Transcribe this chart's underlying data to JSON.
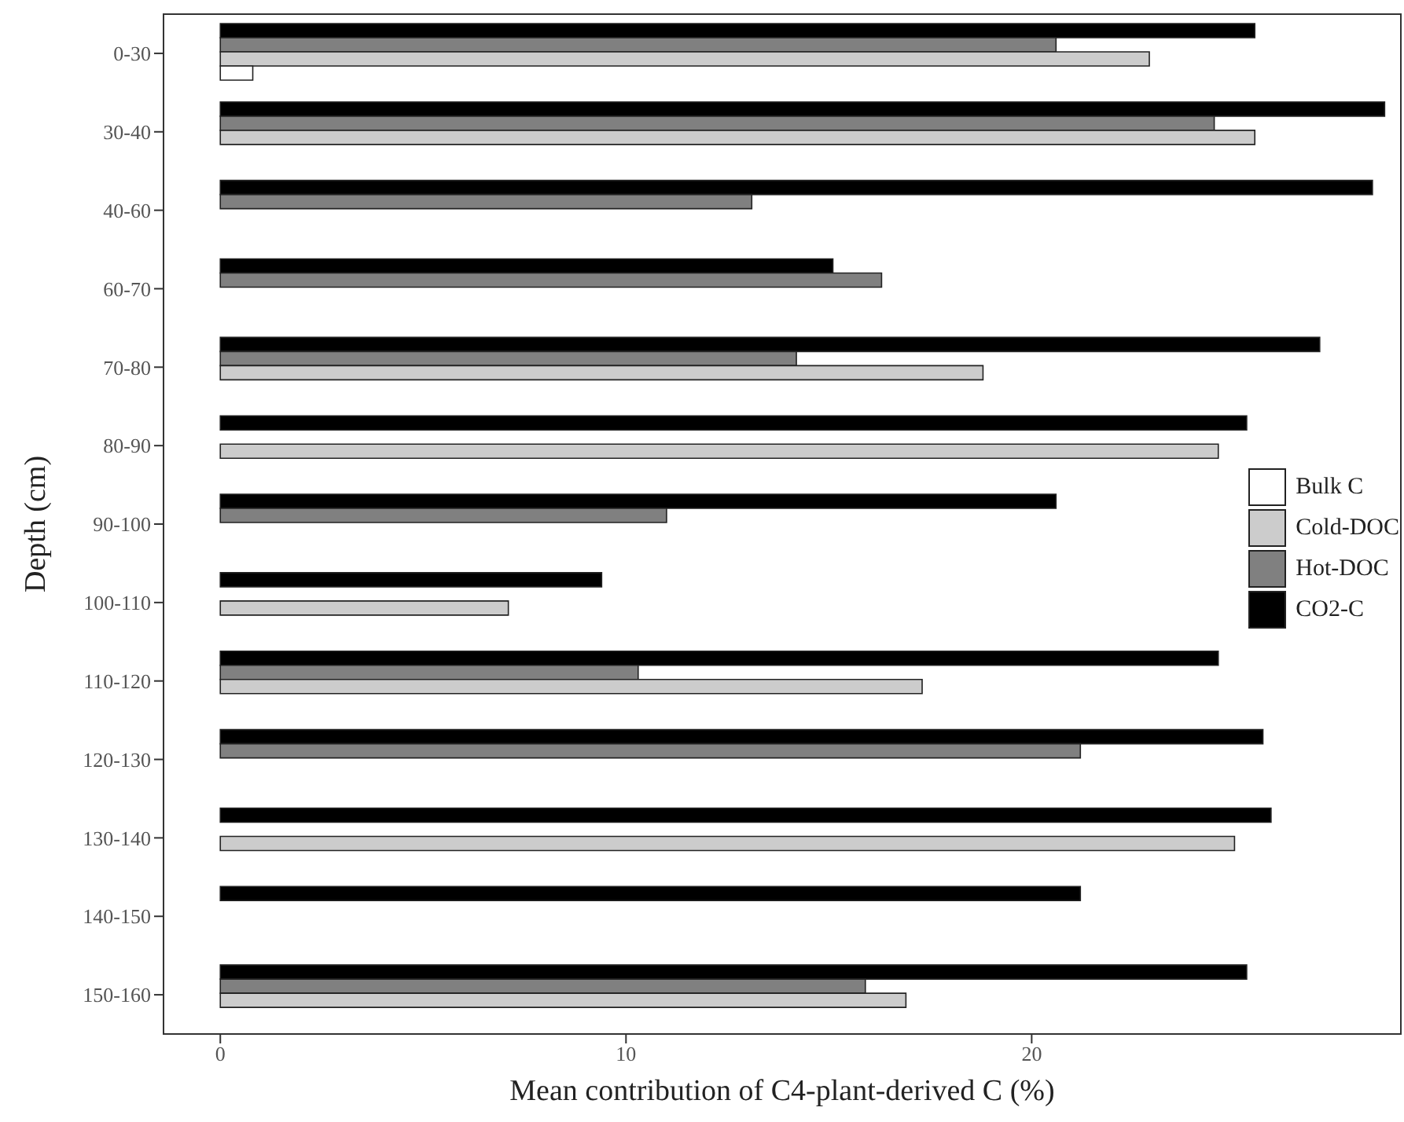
{
  "chart_data": {
    "type": "bar",
    "orientation": "horizontal",
    "xlabel": "Mean contribution of C4-plant-derived C (%)",
    "ylabel": "Depth (cm)",
    "categories": [
      "0-30",
      "30-40",
      "40-60",
      "60-70",
      "70-80",
      "80-90",
      "90-100",
      "100-110",
      "110-120",
      "120-130",
      "130-140",
      "140-150",
      "150-160"
    ],
    "series": [
      {
        "name": "Bulk C",
        "color": "#ffffff",
        "values": [
          0.8,
          null,
          null,
          null,
          null,
          null,
          null,
          null,
          null,
          null,
          null,
          null,
          null
        ]
      },
      {
        "name": "Cold-DOC",
        "color": "#cccccc",
        "values": [
          22.9,
          25.5,
          null,
          null,
          18.8,
          24.6,
          null,
          7.1,
          17.3,
          null,
          25.0,
          null,
          16.9
        ]
      },
      {
        "name": "Hot-DOC",
        "color": "#808080",
        "values": [
          20.6,
          24.5,
          13.1,
          16.3,
          14.2,
          null,
          11.0,
          null,
          10.3,
          21.2,
          null,
          null,
          15.9
        ]
      },
      {
        "name": "CO2-C",
        "color": "#000000",
        "values": [
          25.5,
          28.7,
          28.4,
          15.1,
          27.1,
          25.3,
          20.6,
          9.4,
          24.6,
          25.7,
          25.9,
          21.2,
          25.3
        ]
      }
    ],
    "xlim": [
      -1.4,
      29.1
    ],
    "xticks": [
      0,
      10,
      20
    ],
    "legend": "right"
  }
}
